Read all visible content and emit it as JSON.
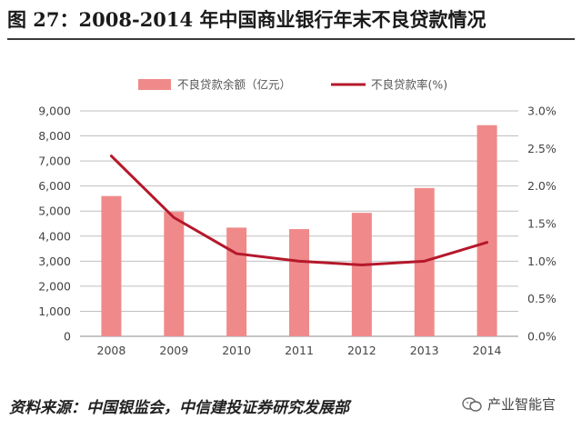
{
  "header": {
    "title": "图 27：2008-2014 年中国商业银行年末不良贷款情况"
  },
  "footer": {
    "source": "资料来源：中国银监会，中信建投证券研究发展部",
    "watermark": "产业智能官"
  },
  "colors": {
    "bar": "#f08a8a",
    "line": "#b5182b",
    "grid": "#bfbfbf",
    "axis_text": "#444444"
  },
  "chart_data": {
    "type": "bar+line",
    "categories": [
      "2008",
      "2009",
      "2010",
      "2011",
      "2012",
      "2013",
      "2014"
    ],
    "series": [
      {
        "name": "不良贷款余额（亿元）",
        "type": "bar",
        "axis": "left",
        "values": [
          5600,
          4970,
          4340,
          4280,
          4930,
          5920,
          8430
        ]
      },
      {
        "name": "不良贷款率(%)",
        "type": "line",
        "axis": "right",
        "values": [
          2.4,
          1.58,
          1.1,
          1.0,
          0.95,
          1.0,
          1.25
        ]
      }
    ],
    "y_left": {
      "min": 0,
      "max": 9000,
      "step": 1000,
      "tick_labels": [
        "0",
        "1,000",
        "2,000",
        "3,000",
        "4,000",
        "5,000",
        "6,000",
        "7,000",
        "8,000",
        "9,000"
      ]
    },
    "y_right": {
      "min": 0,
      "max": 3,
      "step": 0.5,
      "tick_labels": [
        "0.0%",
        "0.5%",
        "1.0%",
        "1.5%",
        "2.0%",
        "2.5%",
        "3.0%"
      ]
    },
    "grid": true,
    "legend": "top"
  }
}
